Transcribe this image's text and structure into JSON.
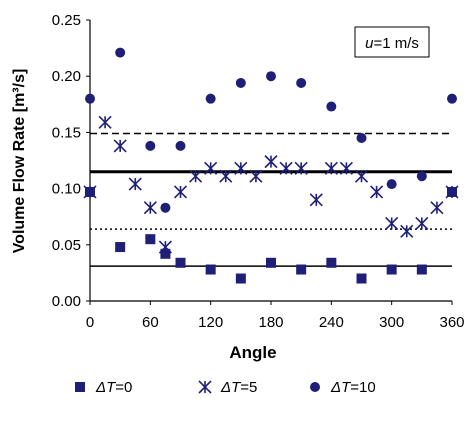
{
  "chart_data": {
    "type": "scatter",
    "annotation": {
      "prefix": "u",
      "text": "=1 m/s"
    },
    "xlabel": "Angle",
    "ylabel": "Volume Flow Rate [m³/s]",
    "xlim": [
      0,
      360
    ],
    "ylim": [
      0,
      0.25
    ],
    "x_ticks": [
      "0",
      "60",
      "120",
      "180",
      "240",
      "300",
      "360"
    ],
    "y_ticks": [
      "0.00",
      "0.05",
      "0.10",
      "0.15",
      "0.20",
      "0.25"
    ],
    "legend_position": "bottom",
    "grid": false,
    "series": [
      {
        "name": "ΔT=0",
        "name_parts": [
          "ΔT",
          "=0"
        ],
        "marker": "square",
        "color": "#1f1f78",
        "x": [
          0,
          30,
          60,
          75,
          90,
          120,
          150,
          180,
          210,
          240,
          270,
          300,
          330,
          360
        ],
        "y": [
          0.097,
          0.048,
          0.055,
          0.042,
          0.034,
          0.028,
          0.02,
          0.034,
          0.028,
          0.034,
          0.02,
          0.028,
          0.028,
          0.097
        ]
      },
      {
        "name": "ΔT=5",
        "name_parts": [
          "ΔT",
          "=5"
        ],
        "marker": "asterisk",
        "color": "#1f1f78",
        "x": [
          0,
          15,
          30,
          45,
          60,
          75,
          90,
          105,
          120,
          135,
          150,
          165,
          180,
          195,
          210,
          225,
          240,
          255,
          270,
          285,
          300,
          315,
          330,
          345,
          360
        ],
        "y": [
          0.097,
          0.159,
          0.138,
          0.104,
          0.083,
          0.048,
          0.097,
          0.111,
          0.118,
          0.111,
          0.118,
          0.111,
          0.124,
          0.118,
          0.118,
          0.09,
          0.118,
          0.118,
          0.111,
          0.097,
          0.069,
          0.062,
          0.069,
          0.083,
          0.097
        ]
      },
      {
        "name": "ΔT=10",
        "name_parts": [
          "ΔT",
          "=10"
        ],
        "marker": "circle",
        "color": "#1f1f78",
        "x": [
          0,
          30,
          60,
          75,
          90,
          120,
          150,
          180,
          210,
          240,
          270,
          300,
          330,
          360
        ],
        "y": [
          0.18,
          0.221,
          0.138,
          0.083,
          0.138,
          0.18,
          0.194,
          0.2,
          0.194,
          0.173,
          0.145,
          0.104,
          0.111,
          0.18
        ]
      }
    ],
    "reference_lines": [
      {
        "y": 0.149,
        "style": "dashed"
      },
      {
        "y": 0.115,
        "style": "solid-thick"
      },
      {
        "y": 0.064,
        "style": "dotted"
      },
      {
        "y": 0.031,
        "style": "solid"
      }
    ]
  }
}
